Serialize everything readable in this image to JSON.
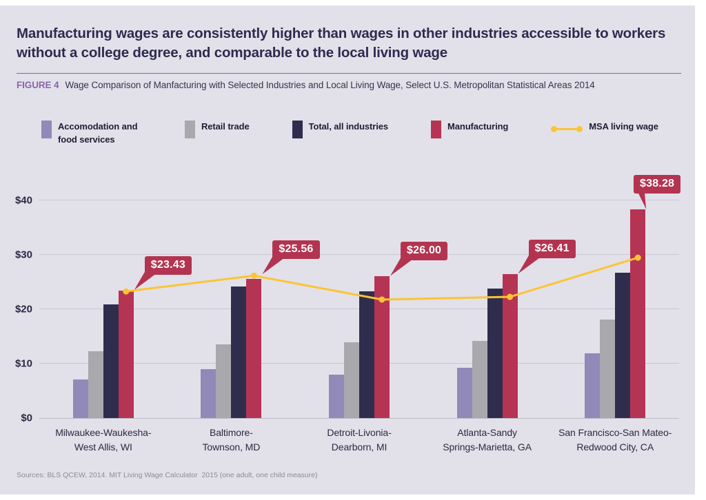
{
  "page": {
    "background": "#ffffff",
    "card_background": "#e2e1e9"
  },
  "header": {
    "title": "Manufacturing wages are consistently higher than wages in other industries accessible to workers without a college degree, and comparable to the local living wage",
    "figure_label": "FIGURE 4",
    "figure_caption": "Wage Comparison of Manfacturing with Selected Industries and Local Living Wage, Select U.S. Metropolitan Statistical Areas 2014"
  },
  "legend": {
    "items": [
      {
        "label": "Accomodation and food services",
        "marker": "swatch",
        "color": "#9189b8"
      },
      {
        "label": "Retail trade",
        "marker": "swatch",
        "color": "#a8a8ad"
      },
      {
        "label": "Total, all industries",
        "marker": "swatch",
        "color": "#2f2d4d"
      },
      {
        "label": "Manufacturing",
        "marker": "swatch",
        "color": "#b63453"
      },
      {
        "label": "MSA living wage",
        "marker": "line",
        "color": "#fcc433"
      }
    ]
  },
  "chart_data": {
    "type": "bar",
    "title": "Wage Comparison of Manfacturing with Selected Industries and Local Living Wage, Select U.S. Metropolitan Statistical Areas 2014",
    "categories": [
      {
        "name": "Milwaukee-Waukesha-West Allis, WI",
        "lines": [
          "Milwaukee-Waukesha-",
          "West Allis, WI"
        ]
      },
      {
        "name": "Baltimore-Townson, MD",
        "lines": [
          "Baltimore-",
          "Townson, MD"
        ]
      },
      {
        "name": "Detroit-Livonia-Dearborn, MI",
        "lines": [
          "Detroit-Livonia-",
          "Dearborn, MI"
        ]
      },
      {
        "name": "Atlanta-Sandy Springs-Marietta, GA",
        "lines": [
          "Atlanta-Sandy",
          "Springs-Marietta, GA"
        ]
      },
      {
        "name": "San Francisco-San Mateo-Redwood City, CA",
        "lines": [
          "San Francisco-San Mateo-",
          "Redwood City, CA"
        ]
      }
    ],
    "series": [
      {
        "name": "Accomodation and food services",
        "color": "#9189b8",
        "values": [
          7.0,
          9.0,
          8.0,
          9.2,
          11.9
        ]
      },
      {
        "name": "Retail trade",
        "color": "#a8a8ad",
        "values": [
          12.3,
          13.5,
          13.9,
          14.1,
          18.1
        ]
      },
      {
        "name": "Total, all industries",
        "color": "#2f2d4d",
        "values": [
          20.9,
          24.2,
          23.2,
          23.8,
          26.7
        ]
      },
      {
        "name": "Manufacturing",
        "color": "#b63453",
        "values": [
          23.43,
          25.56,
          26.0,
          26.41,
          38.28
        ]
      }
    ],
    "line_series": {
      "name": "MSA living wage",
      "color": "#fcc433",
      "values": [
        23.4,
        26.3,
        21.9,
        22.4,
        29.6
      ]
    },
    "callout_labels": [
      "$23.43",
      "$25.56",
      "$26.00",
      "$26.41",
      "$38.28"
    ],
    "callout_color": "#b33450",
    "y_ticks": [
      {
        "label": "$0",
        "value": 0
      },
      {
        "label": "$10",
        "value": 10
      },
      {
        "label": "$20",
        "value": 20
      },
      {
        "label": "$30",
        "value": 30
      },
      {
        "label": "$40",
        "value": 40
      }
    ],
    "ylim": [
      0,
      45
    ],
    "xlabel": "",
    "ylabel": "",
    "grid": true,
    "legend_position": "top"
  },
  "footer": {
    "sources": "Sources: BLS QCEW, 2014. MIT Living Wage Calculator  2015 (one adult, one child measure)"
  }
}
